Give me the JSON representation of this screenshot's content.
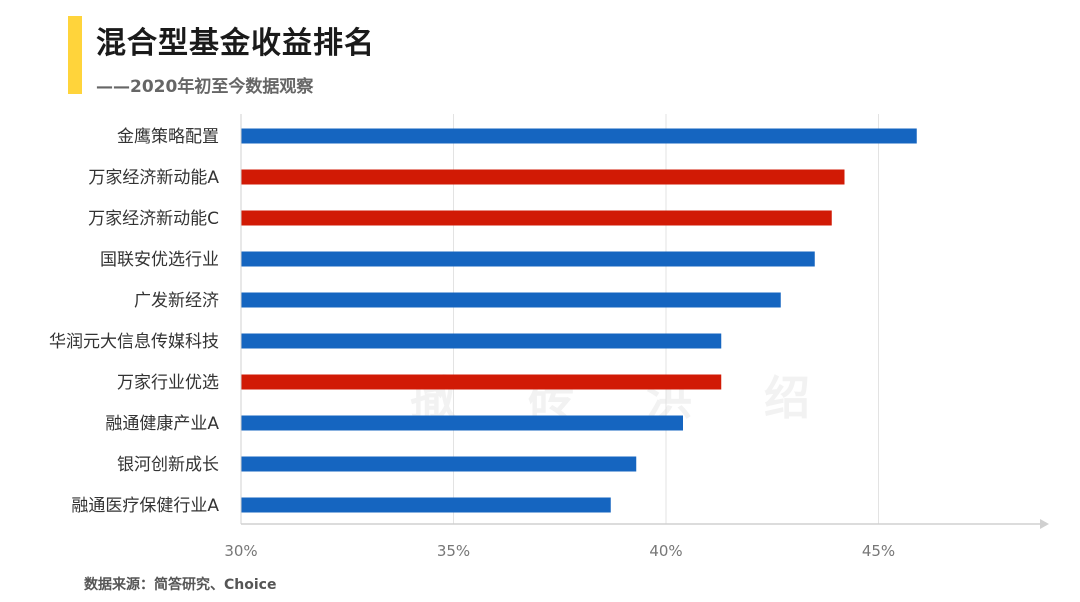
{
  "header": {
    "title": "混合型基金收益排名",
    "subtitle": "——2020年初至今数据观察"
  },
  "footer": {
    "source": "数据来源：简答研究、Choice"
  },
  "colors": {
    "accent": "#FFD43B",
    "blue": "#1565C0",
    "red": "#D11A05",
    "grid": "#e3e3e3"
  },
  "chart_data": {
    "type": "bar",
    "orientation": "horizontal",
    "categories": [
      "金鹰策略配置",
      "万家经济新动能A",
      "万家经济新动能C",
      "国联安优选行业",
      "广发新经济",
      "华润元大信息传媒科技",
      "万家行业优选",
      "融通健康产业A",
      "银河创新成长",
      "融通医疗保健行业A"
    ],
    "values": [
      45.9,
      44.2,
      43.9,
      43.5,
      42.7,
      41.3,
      41.3,
      40.4,
      39.3,
      38.7
    ],
    "highlight": [
      false,
      true,
      true,
      false,
      false,
      false,
      true,
      false,
      false,
      false
    ],
    "xlim": [
      30,
      48.8
    ],
    "xticks": [
      30,
      35,
      40,
      45
    ],
    "xtick_labels": [
      "30%",
      "35%",
      "40%",
      "45%"
    ],
    "grid": true,
    "legend": "none"
  }
}
